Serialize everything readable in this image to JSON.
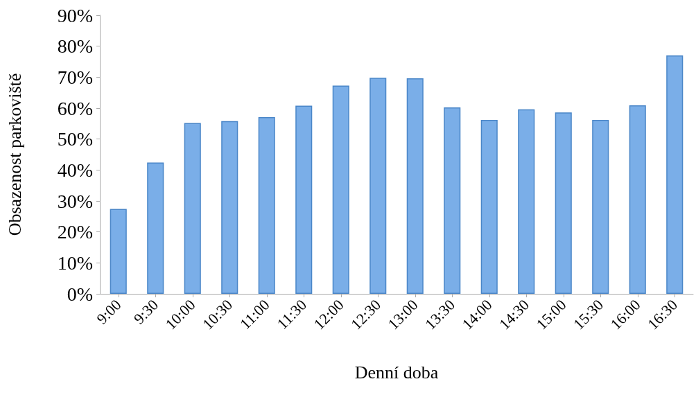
{
  "chart_data": {
    "type": "bar",
    "xlabel": "Denní doba",
    "ylabel": "Obsazenost parkoviště",
    "categories": [
      "9:00",
      "9:30",
      "10:00",
      "10:30",
      "11:00",
      "11:30",
      "12:00",
      "12:30",
      "13:00",
      "13:30",
      "14:00",
      "14:30",
      "15:00",
      "15:30",
      "16:00",
      "16:30"
    ],
    "values": [
      27.4,
      42.4,
      55.2,
      55.8,
      57.1,
      60.8,
      67.3,
      69.8,
      69.6,
      60.2,
      56.2,
      59.6,
      58.6,
      56.2,
      60.9,
      77.0
    ],
    "color": "#7aaee8",
    "ylim": [
      0,
      90
    ],
    "yticks": [
      {
        "value": 0,
        "label": "0%"
      },
      {
        "value": 10,
        "label": "10%"
      },
      {
        "value": 20,
        "label": "20%"
      },
      {
        "value": 30,
        "label": "30%"
      },
      {
        "value": 40,
        "label": "40%"
      },
      {
        "value": 50,
        "label": "50%"
      },
      {
        "value": 60,
        "label": "60%"
      },
      {
        "value": 70,
        "label": "70%"
      },
      {
        "value": 80,
        "label": "80%"
      },
      {
        "value": 90,
        "label": "90%"
      }
    ],
    "grid": false
  }
}
